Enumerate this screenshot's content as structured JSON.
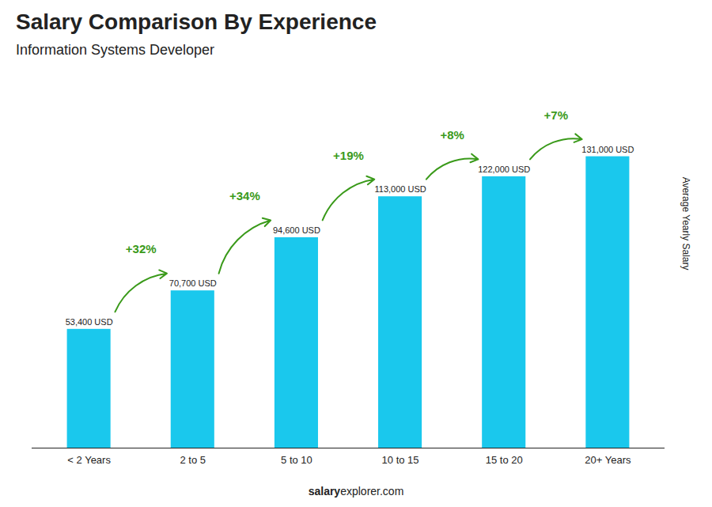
{
  "chart_data": {
    "type": "bar",
    "title": "Salary Comparison By Experience",
    "subtitle": "Information Systems Developer",
    "ylabel": "Average Yearly Salary",
    "categories": [
      "< 2 Years",
      "2 to 5",
      "5 to 10",
      "10 to 15",
      "15 to 20",
      "20+ Years"
    ],
    "values": [
      53400,
      70700,
      94600,
      113000,
      122000,
      131000
    ],
    "value_labels": [
      "53,400 USD",
      "70,700 USD",
      "94,600 USD",
      "113,000 USD",
      "122,000 USD",
      "131,000 USD"
    ],
    "data_labels": true,
    "color": "#1ac8ed",
    "ylim": [
      0,
      160000
    ],
    "tick_labels": "x",
    "grid": false,
    "annotations": [
      {
        "text": "+32%",
        "from": "< 2 Years",
        "to": "2 to 5"
      },
      {
        "text": "+34%",
        "from": "2 to 5",
        "to": "5 to 10"
      },
      {
        "text": "+19%",
        "from": "5 to 10",
        "to": "10 to 15"
      },
      {
        "text": "+8%",
        "from": "10 to 15",
        "to": "15 to 20"
      },
      {
        "text": "+7%",
        "from": "15 to 20",
        "to": "20+ Years"
      }
    ],
    "watermark": [
      "salary",
      "explorer.com"
    ]
  }
}
